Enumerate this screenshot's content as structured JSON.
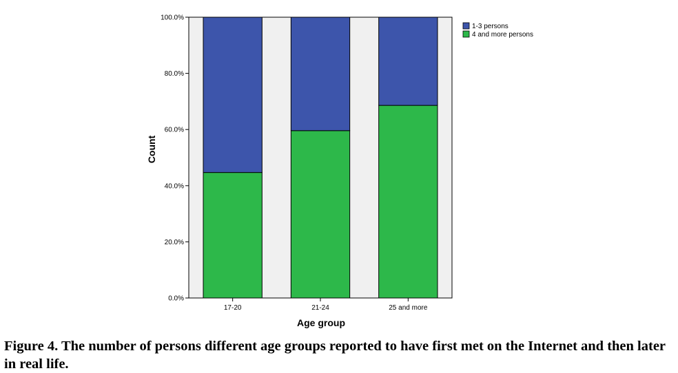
{
  "caption": "Figure 4. The number of persons different age groups reported to have first met on the Internet and then later in real life.",
  "chart_data": {
    "type": "bar",
    "stacked": true,
    "categories": [
      "17-20",
      "21-24",
      "25 and more"
    ],
    "series": [
      {
        "name": "4 and more persons",
        "color": "#2db84a",
        "values": [
          44.7,
          59.6,
          68.6
        ]
      },
      {
        "name": "1-3 persons",
        "color": "#3d55ab",
        "values": [
          55.3,
          40.4,
          31.4
        ]
      }
    ],
    "xlabel": "Age group",
    "ylabel": "Count",
    "ylim": [
      0,
      100
    ],
    "yticks": [
      "0.0%",
      "20.0%",
      "40.0%",
      "60.0%",
      "80.0%",
      "100.0%"
    ],
    "legend": [
      "1-3 persons",
      "4 and more persons"
    ],
    "legend_placement": "top-right outside",
    "plot_background": "#f0f0f0",
    "grid": false
  }
}
